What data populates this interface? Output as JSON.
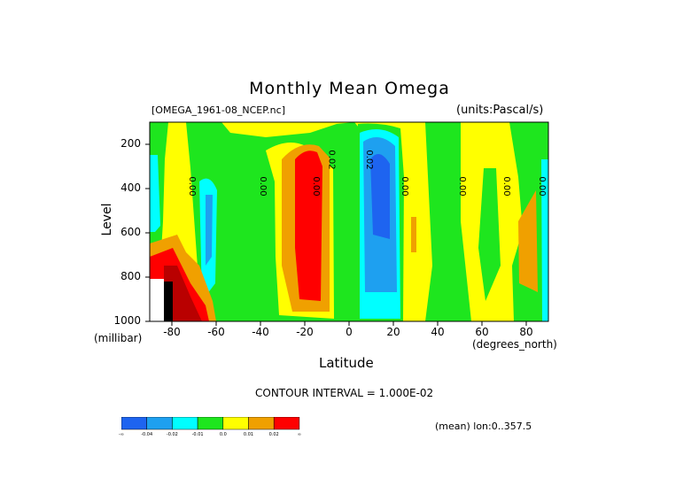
{
  "chart": {
    "title": "Monthly Mean Omega",
    "dataset": "[OMEGA_1961-08_NCEP.nc]",
    "units": "(units:Pascal/s)",
    "ylabel": "Level",
    "yunit": "(millibar)",
    "xlabel": "Latitude",
    "xunit": "(degrees_north)",
    "contour_interval": "CONTOUR INTERVAL = 1.000E-02",
    "mean_note": "(mean) lon:0..357.5"
  },
  "chart_data": {
    "type": "heatmap",
    "title": "Monthly Mean Omega",
    "xlabel": "Latitude",
    "ylabel": "Level",
    "xlim": [
      -90,
      90
    ],
    "ylim": [
      1000,
      100
    ],
    "x_ticks": [
      "-80",
      "-60",
      "-40",
      "-20",
      "0",
      "20",
      "40",
      "60",
      "80"
    ],
    "y_ticks": [
      "200",
      "400",
      "600",
      "800",
      "1000"
    ],
    "contour_labels": [
      "0.00",
      "0.00",
      "0.00",
      "0.02",
      "0.02",
      "0.00",
      "0.00",
      "0.00",
      "0.00"
    ],
    "legend_levels": [
      "-∞",
      "-0.04",
      "-0.02",
      "-0.01",
      "0.0",
      "0.01",
      "0.02",
      "∞"
    ],
    "legend_colors": [
      "#1e64f0",
      "#1ea0f0",
      "#00ffff",
      "#1ee61e",
      "#ffff00",
      "#f0a000",
      "#ff0000"
    ],
    "bands": [
      {
        "lat_min": -90,
        "lat_max": -85,
        "value_class": "slightly_negative",
        "color": "#1ee61e"
      },
      {
        "lat_min": -85,
        "lat_max": -72,
        "value_class": "weak_positive",
        "color": "#ffff00"
      },
      {
        "lat_min": -72,
        "lat_max": -62,
        "value_class": "weak_negative",
        "color": "#1ee61e"
      },
      {
        "lat_min": -62,
        "lat_max": -38,
        "value_class": "slightly_negative",
        "color": "#1ee61e"
      },
      {
        "lat_min": -38,
        "lat_max": -12,
        "value_class": "strong_positive",
        "color": "#ff0000"
      },
      {
        "lat_min": -12,
        "lat_max": 2,
        "value_class": "weak_positive",
        "color": "#ffff00"
      },
      {
        "lat_min": 2,
        "lat_max": 22,
        "value_class": "strong_negative",
        "color": "#1e64f0"
      },
      {
        "lat_min": 22,
        "lat_max": 30,
        "value_class": "weak_positive",
        "color": "#ffff00"
      },
      {
        "lat_min": 30,
        "lat_max": 50,
        "value_class": "weak_positive",
        "color": "#ffff00"
      },
      {
        "lat_min": 50,
        "lat_max": 90,
        "value_class": "mixed",
        "color": "#1ee61e"
      }
    ]
  }
}
